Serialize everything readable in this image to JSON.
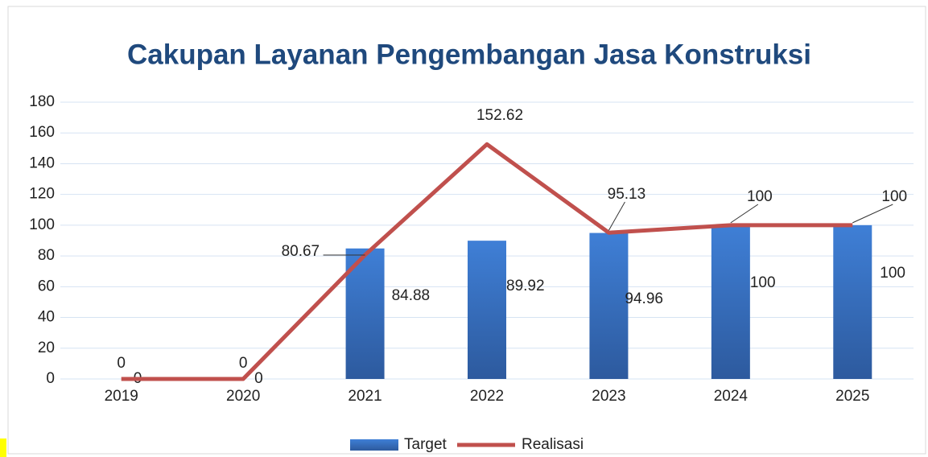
{
  "chart_data": {
    "type": "combo",
    "title": "Cakupan Layanan Pengembangan Jasa Konstruksi",
    "categories": [
      "2019",
      "2020",
      "2021",
      "2022",
      "2023",
      "2024",
      "2025"
    ],
    "series": [
      {
        "name": "Target",
        "type": "bar",
        "color": "#3a78cf",
        "values": [
          0,
          0,
          84.88,
          89.92,
          94.96,
          100,
          100
        ]
      },
      {
        "name": "Realisasi",
        "type": "line",
        "color": "#c0504d",
        "values": [
          0,
          0,
          80.67,
          152.62,
          95.13,
          100,
          100
        ]
      }
    ],
    "ylim": [
      0,
      180
    ],
    "yticks": [
      0,
      20,
      40,
      60,
      80,
      100,
      120,
      140,
      160,
      180
    ],
    "grid": true,
    "legend": "bottom"
  }
}
